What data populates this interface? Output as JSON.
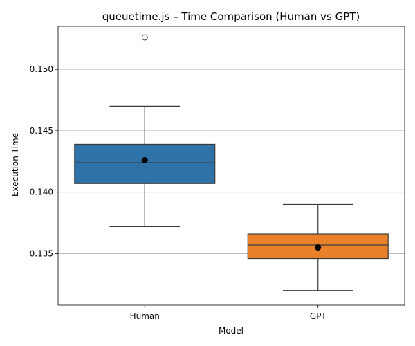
{
  "chart_data": {
    "type": "box",
    "title": "queuetime.js – Time Comparison (Human vs GPT)",
    "xlabel": "Model",
    "ylabel": "Execution Time",
    "ylim": [
      0.1308,
      0.1535
    ],
    "yticks": [
      0.135,
      0.14,
      0.145,
      0.15
    ],
    "ytick_labels": [
      "0.135",
      "0.140",
      "0.145",
      "0.150"
    ],
    "grid": "y",
    "categories": [
      "Human",
      "GPT"
    ],
    "boxes": [
      {
        "name": "Human",
        "color": "#2e72a8",
        "whisker_low": 0.1372,
        "q1": 0.1407,
        "median": 0.1424,
        "q3": 0.1439,
        "whisker_high": 0.147,
        "mean": 0.1426,
        "outliers": [
          0.1526
        ]
      },
      {
        "name": "GPT",
        "color": "#e8812a",
        "whisker_low": 0.132,
        "q1": 0.1346,
        "median": 0.1357,
        "q3": 0.1366,
        "whisker_high": 0.139,
        "mean": 0.1355,
        "outliers": []
      }
    ]
  }
}
